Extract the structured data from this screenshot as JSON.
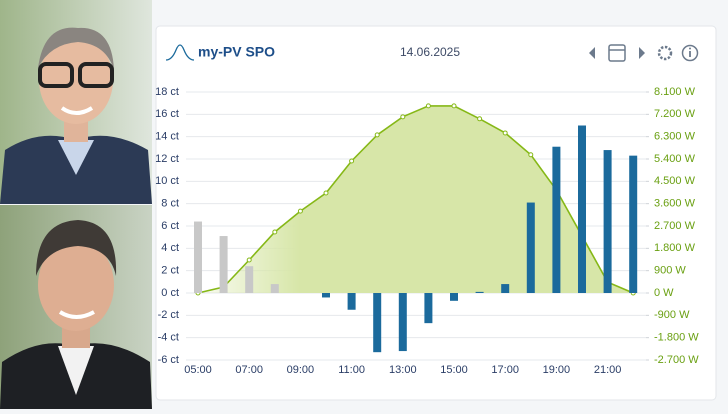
{
  "header": {
    "title": "my-PV SPO",
    "date": "14.06.2025"
  },
  "chart_data": {
    "type": "combo",
    "categories": [
      "05:00",
      null,
      "07:00",
      null,
      "09:00",
      null,
      "11:00",
      null,
      "13:00",
      null,
      "15:00",
      null,
      "17:00",
      null,
      "19:00",
      null,
      "21:00",
      null
    ],
    "series": [
      {
        "type": "bar",
        "color": "#1b6a9c",
        "colors": [
          "#c8c8c8",
          "#c8c8c8",
          "#c8c8c8",
          "#c8c8c8",
          "#c8c8c8",
          "#1b6a9c",
          "#1b6a9c",
          "#1b6a9c",
          "#1b6a9c",
          "#1b6a9c",
          "#1b6a9c",
          "#1b6a9c",
          "#1b6a9c",
          "#1b6a9c",
          "#1b6a9c",
          "#1b6a9c",
          "#1b6a9c",
          "#1b6a9c"
        ],
        "values": [
          6.4,
          5.1,
          2.4,
          0.8,
          0,
          -0.4,
          -1.5,
          -5.3,
          -5.2,
          -2.7,
          -0.7,
          0.1,
          0.8,
          8.1,
          13.1,
          15.0,
          12.8,
          12.3
        ]
      },
      {
        "type": "line",
        "axis": "y2",
        "color": "#86b817",
        "area_color": "#d7e6a8",
        "values": [
          0,
          240,
          1330,
          2460,
          3300,
          4030,
          5320,
          6370,
          7100,
          7540,
          7540,
          7020,
          6450,
          5570,
          4150,
          2300,
          440,
          0
        ]
      }
    ],
    "ylim": [
      -6,
      18
    ],
    "yticks": [
      {
        "value": -6,
        "label": "-6 ct"
      },
      {
        "value": -4,
        "label": "-4 ct"
      },
      {
        "value": -2,
        "label": "-2 ct"
      },
      {
        "value": 0,
        "label": "0 ct"
      },
      {
        "value": 2,
        "label": "2 ct"
      },
      {
        "value": 4,
        "label": "4 ct"
      },
      {
        "value": 6,
        "label": "6 ct"
      },
      {
        "value": 8,
        "label": "8 ct"
      },
      {
        "value": 10,
        "label": "10 ct"
      },
      {
        "value": 12,
        "label": "12 ct"
      },
      {
        "value": 14,
        "label": "14 ct"
      },
      {
        "value": 16,
        "label": "16 ct"
      },
      {
        "value": 18,
        "label": "18 ct"
      }
    ],
    "y2lim": [
      -2700,
      8100
    ],
    "y2ticks": [
      {
        "value": -2700,
        "label": "-2.700 W"
      },
      {
        "value": -1800,
        "label": "-1.800 W"
      },
      {
        "value": -900,
        "label": "-900 W"
      },
      {
        "value": 0,
        "label": "0 W"
      },
      {
        "value": 900,
        "label": "900 W"
      },
      {
        "value": 1800,
        "label": "1.800 W"
      },
      {
        "value": 2700,
        "label": "2.700 W"
      },
      {
        "value": 3600,
        "label": "3.600 W"
      },
      {
        "value": 4500,
        "label": "4.500 W"
      },
      {
        "value": 5400,
        "label": "5.400 W"
      },
      {
        "value": 6300,
        "label": "6.300 W"
      },
      {
        "value": 7200,
        "label": "7.200 W"
      },
      {
        "value": 8100,
        "label": "8.100 W"
      }
    ],
    "grid": true
  }
}
